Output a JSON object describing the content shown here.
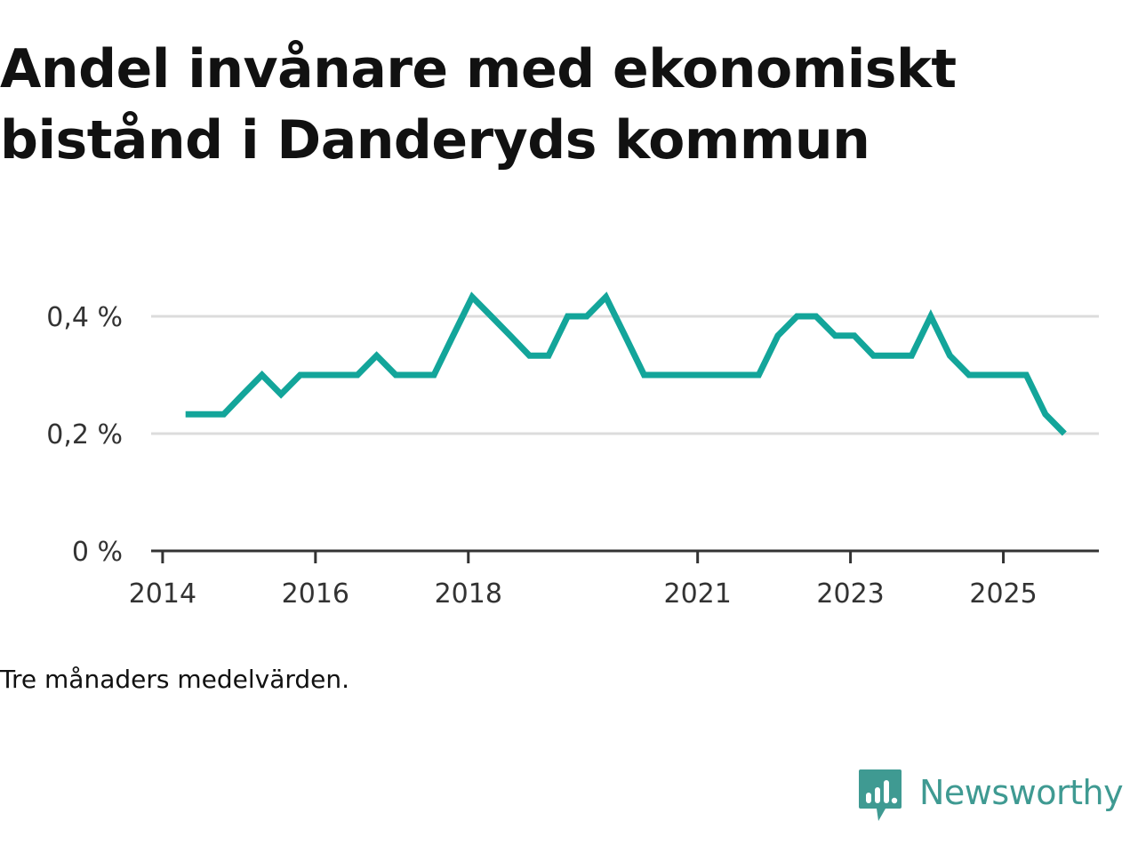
{
  "brand": {
    "name": "Newsworthy",
    "color": "#3f9a92"
  },
  "chart_data": {
    "type": "line",
    "title": "Andel invånare med ekonomiskt bistånd i Danderyds kommun",
    "note": "Tre månaders medelvärden.",
    "xlabel": "",
    "ylabel": "",
    "ylim": [
      0,
      0.5
    ],
    "xlim": [
      2013.85,
      2026.25
    ],
    "grid": true,
    "legend": "none",
    "line_color": "#13a59a",
    "y_ticks": [
      {
        "value": 0,
        "label": "0 %"
      },
      {
        "value": 0.2,
        "label": "0,2 %"
      },
      {
        "value": 0.4,
        "label": "0,4 %"
      }
    ],
    "x_ticks": [
      {
        "value": 2014.0,
        "label": "2014"
      },
      {
        "value": 2016.0,
        "label": "2016"
      },
      {
        "value": 2018.0,
        "label": "2018"
      },
      {
        "value": 2021.0,
        "label": "2021"
      },
      {
        "value": 2023.0,
        "label": "2023"
      },
      {
        "value": 2025.0,
        "label": "2025"
      }
    ],
    "series": [
      {
        "name": "Andel invånare med ekonomiskt bistånd",
        "x": [
          2014.3,
          2014.55,
          2014.8,
          2015.05,
          2015.3,
          2015.55,
          2015.8,
          2016.05,
          2016.3,
          2016.55,
          2016.8,
          2017.05,
          2017.3,
          2017.55,
          2017.8,
          2018.05,
          2018.3,
          2018.55,
          2018.8,
          2019.05,
          2019.3,
          2019.55,
          2019.8,
          2020.05,
          2020.3,
          2020.55,
          2020.8,
          2021.05,
          2021.3,
          2021.55,
          2021.8,
          2022.05,
          2022.3,
          2022.55,
          2022.8,
          2023.05,
          2023.3,
          2023.55,
          2023.8,
          2024.05,
          2024.3,
          2024.55,
          2024.8,
          2025.05,
          2025.3,
          2025.55,
          2025.8
        ],
        "values": [
          0.233,
          0.233,
          0.233,
          0.267,
          0.3,
          0.267,
          0.3,
          0.3,
          0.3,
          0.3,
          0.333,
          0.3,
          0.3,
          0.3,
          0.367,
          0.433,
          0.4,
          0.367,
          0.333,
          0.333,
          0.4,
          0.4,
          0.433,
          0.367,
          0.3,
          0.3,
          0.3,
          0.3,
          0.3,
          0.3,
          0.3,
          0.367,
          0.4,
          0.4,
          0.367,
          0.367,
          0.333,
          0.333,
          0.333,
          0.4,
          0.333,
          0.3,
          0.3,
          0.3,
          0.3,
          0.233,
          0.2
        ]
      }
    ]
  }
}
